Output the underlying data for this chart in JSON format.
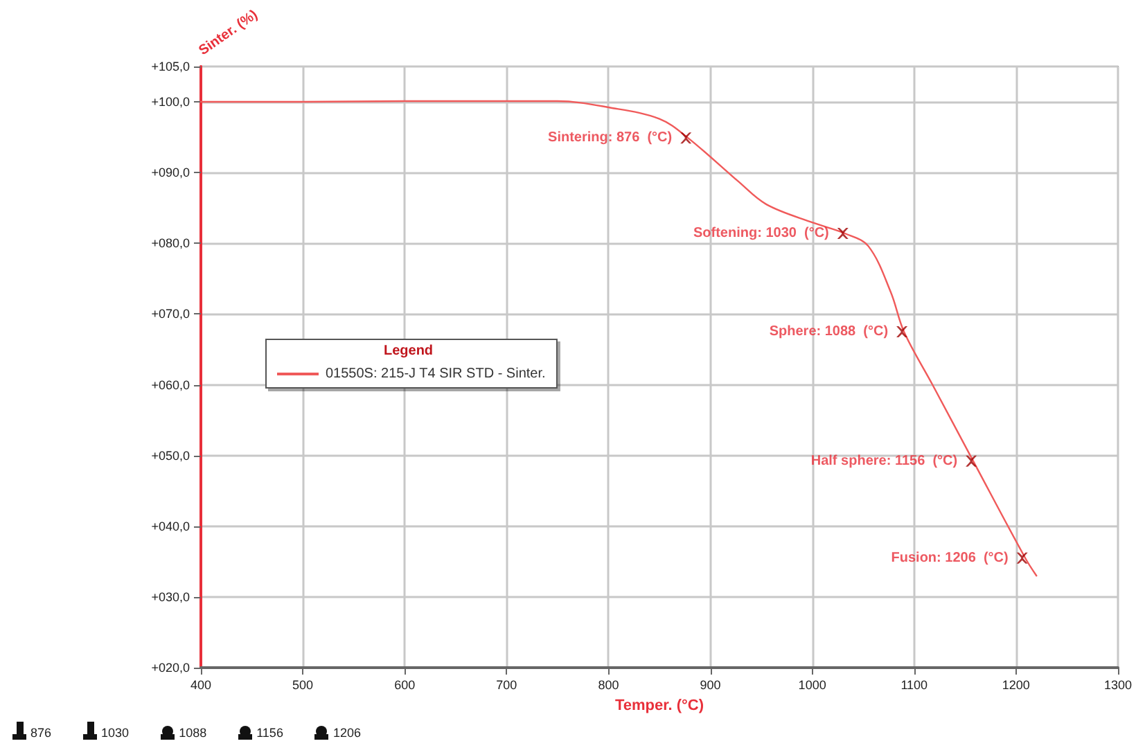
{
  "chart_data": {
    "type": "line",
    "xlabel": "Temper. (°C)",
    "ylabel": "Sinter. (%)",
    "legend_title": "Legend",
    "series": [
      {
        "name": "01550S: 215-J T4 SIR STD - Sinter.",
        "color": "#f05a5a",
        "x": [
          400,
          500,
          600,
          700,
          750,
          801,
          850,
          878,
          927,
          955,
          1001,
          1032,
          1055,
          1077,
          1090,
          1118,
          1158,
          1209,
          1220
        ],
        "values": [
          100,
          100,
          100.1,
          100.1,
          100.1,
          99.2,
          97.6,
          94.9,
          88.8,
          85.5,
          82.9,
          81.4,
          79.6,
          73.1,
          67.5,
          60,
          49.2,
          35.5,
          33
        ]
      },
      {
        "type": "scatter",
        "color": "#a00000",
        "marker": "cross",
        "x": [
          876,
          1030,
          1088,
          1156,
          1206
        ],
        "values": [
          94.9,
          81.4,
          67.5,
          49.2,
          35.5
        ]
      }
    ],
    "annotations": [
      {
        "text": "Sintering: 876  (°C)",
        "x": 876,
        "y": 94.9
      },
      {
        "text": "Softening: 1030  (°C)",
        "x": 1030,
        "y": 81.4
      },
      {
        "text": "Sphere: 1088  (°C)",
        "x": 1088,
        "y": 67.5
      },
      {
        "text": "Half sphere: 1156  (°C)",
        "x": 1156,
        "y": 49.2
      },
      {
        "text": "Fusion: 1206  (°C)",
        "x": 1206,
        "y": 35.5
      },
      "876",
      "1030",
      "1088",
      "1156",
      "1206"
    ],
    "xlim": [
      400,
      1300
    ],
    "xticks": [
      400,
      500,
      600,
      700,
      800,
      900,
      1000,
      1100,
      1200,
      1300
    ],
    "ylim": [
      20,
      105
    ],
    "yticks": [
      {
        "value": 20,
        "label": "+020,0"
      },
      {
        "value": 30,
        "label": "+030,0"
      },
      {
        "value": 40,
        "label": "+040,0"
      },
      {
        "value": 50,
        "label": "+050,0"
      },
      {
        "value": 60,
        "label": "+060,0"
      },
      {
        "value": 70,
        "label": "+070,0"
      },
      {
        "value": 80,
        "label": "+080,0"
      },
      {
        "value": 90,
        "label": "+090,0"
      },
      {
        "value": 100,
        "label": "+100,0"
      },
      {
        "value": 105,
        "label": "+105,0"
      }
    ],
    "grid": true,
    "legend": "left",
    "marker": "none",
    "line_style": "solid"
  }
}
